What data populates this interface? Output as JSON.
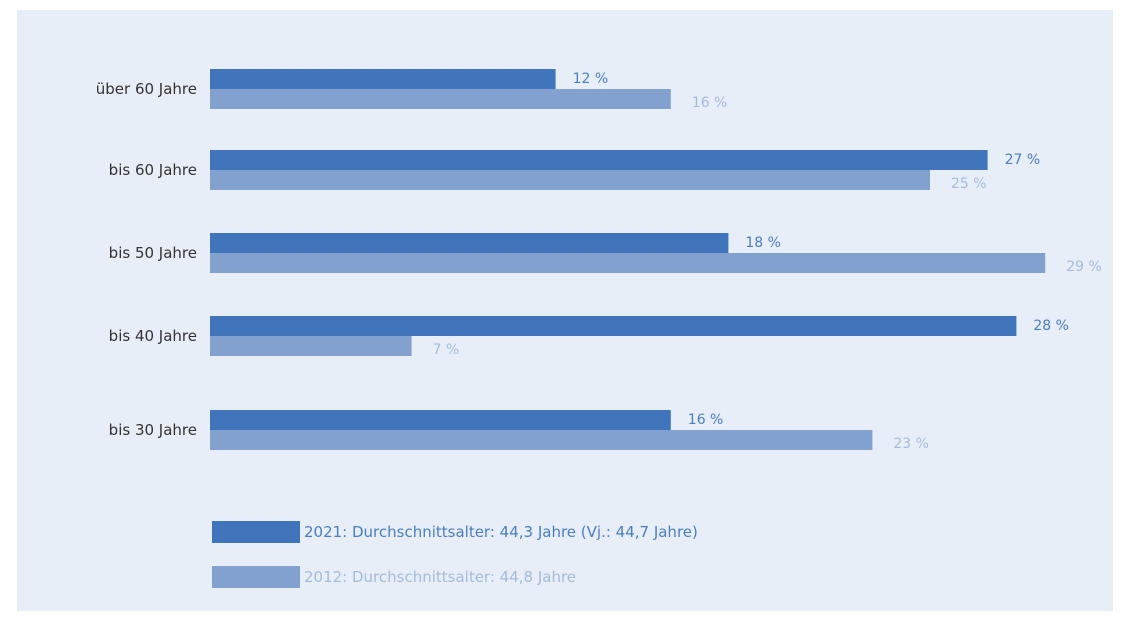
{
  "chart_data": {
    "type": "bar",
    "orientation": "horizontal",
    "categories": [
      "über 60 Jahre",
      "bis 60 Jahre",
      "bis 50 Jahre",
      "bis 40 Jahre",
      "bis 30 Jahre"
    ],
    "series": [
      {
        "name": "2021: Durchschnittsalter: 44,3 Jahre (Vj.: 44,7 Jahre)",
        "values": [
          12,
          27,
          18,
          28,
          16
        ],
        "value_labels": [
          "12 %",
          "27 %",
          "18 %",
          "28 %",
          "16 %"
        ],
        "color": "#4075bb",
        "label_color": "#4a7ec2"
      },
      {
        "name": "2012: Durchschnittsalter: 44,8 Jahre",
        "values": [
          16,
          25,
          29,
          7,
          23
        ],
        "value_labels": [
          "16 %",
          "25 %",
          "29 %",
          "7 %",
          "23 %"
        ],
        "color": "#83a1cf",
        "label_color": "#a4bbdc"
      }
    ],
    "title": "",
    "xlabel": "",
    "ylabel": "",
    "xlim": [
      0,
      30
    ],
    "grid": false,
    "legend_position": "bottom",
    "background": "#e8eef7"
  }
}
